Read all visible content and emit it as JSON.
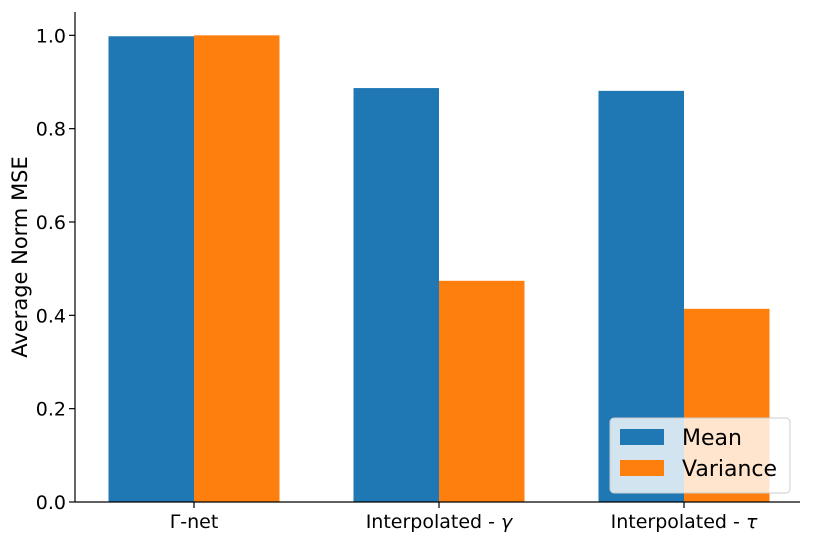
{
  "chart_data": {
    "type": "bar",
    "ylabel": "Average Norm MSE",
    "xlabel": "",
    "categories": [
      {
        "label": "Γ-net",
        "prefix": "Γ-net",
        "symbol": ""
      },
      {
        "label": "Interpolated - γ",
        "prefix": "Interpolated - ",
        "symbol": "γ"
      },
      {
        "label": "Interpolated - τ",
        "prefix": "Interpolated - ",
        "symbol": "τ"
      }
    ],
    "series": [
      {
        "name": "Mean",
        "color": "#1f77b4",
        "values": [
          0.998,
          0.887,
          0.881
        ]
      },
      {
        "name": "Variance",
        "color": "#ff7f0e",
        "values": [
          1.0,
          0.474,
          0.414
        ]
      }
    ],
    "ylim": [
      0,
      1.05
    ],
    "yticks": [
      "0.0",
      "0.2",
      "0.4",
      "0.6",
      "0.8",
      "1.0"
    ],
    "grid": false,
    "legend_position": "lower-right"
  }
}
